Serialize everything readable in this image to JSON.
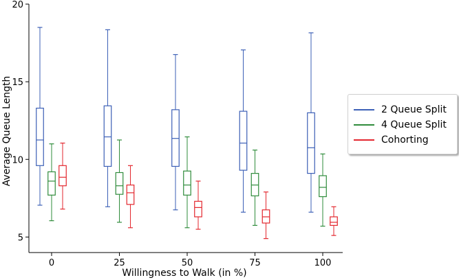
{
  "chart_data": {
    "type": "box",
    "title": "",
    "xlabel": "Willingness to Walk (in %)",
    "ylabel": "Average Queue Length",
    "categories": [
      "0",
      "25",
      "50",
      "75",
      "100"
    ],
    "ylim": [
      4,
      20
    ],
    "yticks": [
      "5",
      "10",
      "15",
      "20"
    ],
    "legend_position": "center-right outside",
    "series": [
      {
        "name": "2 Queue Split",
        "color": "#3b5fb6",
        "boxes": [
          {
            "min": 7.05,
            "q1": 9.6,
            "median": 11.25,
            "q3": 13.3,
            "max": 18.5
          },
          {
            "min": 6.95,
            "q1": 9.55,
            "median": 11.45,
            "q3": 13.45,
            "max": 18.35
          },
          {
            "min": 6.75,
            "q1": 9.55,
            "median": 11.35,
            "q3": 13.2,
            "max": 16.75
          },
          {
            "min": 6.6,
            "q1": 9.3,
            "median": 11.05,
            "q3": 13.1,
            "max": 17.05
          },
          {
            "min": 6.6,
            "q1": 9.1,
            "median": 10.75,
            "q3": 13.0,
            "max": 18.15
          }
        ]
      },
      {
        "name": "4 Queue Split",
        "color": "#2e8b3a",
        "boxes": [
          {
            "min": 6.05,
            "q1": 7.7,
            "median": 8.6,
            "q3": 9.2,
            "max": 11.0
          },
          {
            "min": 5.95,
            "q1": 7.75,
            "median": 8.3,
            "q3": 9.15,
            "max": 11.25
          },
          {
            "min": 5.6,
            "q1": 7.7,
            "median": 8.35,
            "q3": 9.25,
            "max": 11.45
          },
          {
            "min": 5.75,
            "q1": 7.65,
            "median": 8.35,
            "q3": 9.1,
            "max": 10.6
          },
          {
            "min": 5.7,
            "q1": 7.6,
            "median": 8.2,
            "q3": 8.95,
            "max": 10.35
          }
        ]
      },
      {
        "name": "Cohorting",
        "color": "#e3262d",
        "boxes": [
          {
            "min": 6.8,
            "q1": 8.3,
            "median": 8.85,
            "q3": 9.6,
            "max": 11.05
          },
          {
            "min": 5.6,
            "q1": 7.1,
            "median": 7.85,
            "q3": 8.35,
            "max": 9.6
          },
          {
            "min": 5.5,
            "q1": 6.3,
            "median": 6.9,
            "q3": 7.3,
            "max": 8.6
          },
          {
            "min": 4.9,
            "q1": 5.9,
            "median": 6.3,
            "q3": 6.75,
            "max": 7.9
          },
          {
            "min": 5.1,
            "q1": 5.75,
            "median": 5.95,
            "q3": 6.3,
            "max": 6.95
          }
        ]
      }
    ]
  }
}
